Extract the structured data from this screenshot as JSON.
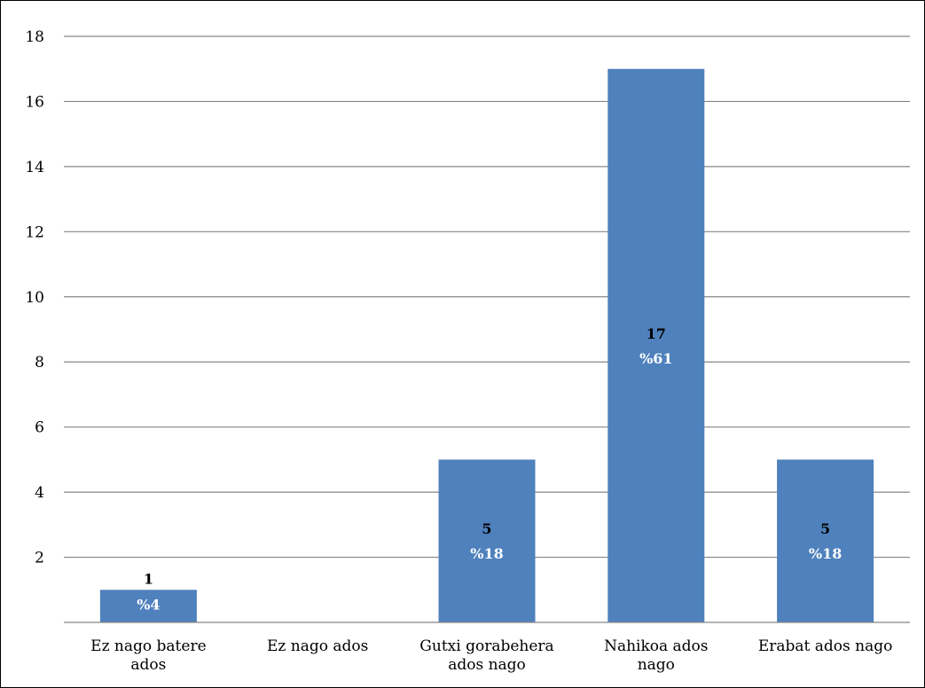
{
  "chart_data": {
    "type": "bar",
    "categories": [
      [
        "Ez nago batere",
        "ados"
      ],
      [
        "Ez nago ados"
      ],
      [
        "Gutxi gorabehera",
        "ados nago"
      ],
      [
        "Nahikoa ados",
        "nago"
      ],
      [
        "Erabat ados nago"
      ]
    ],
    "values": [
      1,
      0,
      5,
      17,
      5
    ],
    "value_labels": [
      "1",
      "",
      "5",
      "17",
      "5"
    ],
    "percent_labels": [
      "%4",
      "",
      "%18",
      "%61",
      "%18"
    ],
    "ylim": [
      0,
      18
    ],
    "yticks": [
      2,
      4,
      6,
      8,
      10,
      12,
      14,
      16,
      18
    ],
    "grid": true,
    "legend": "none",
    "title": "",
    "xlabel": "",
    "ylabel": "",
    "colors": {
      "bar": "#4f81bd",
      "grid": "#868686",
      "axis": "#868686",
      "count_label": "#000000",
      "percent_label": "#ffffff"
    }
  }
}
